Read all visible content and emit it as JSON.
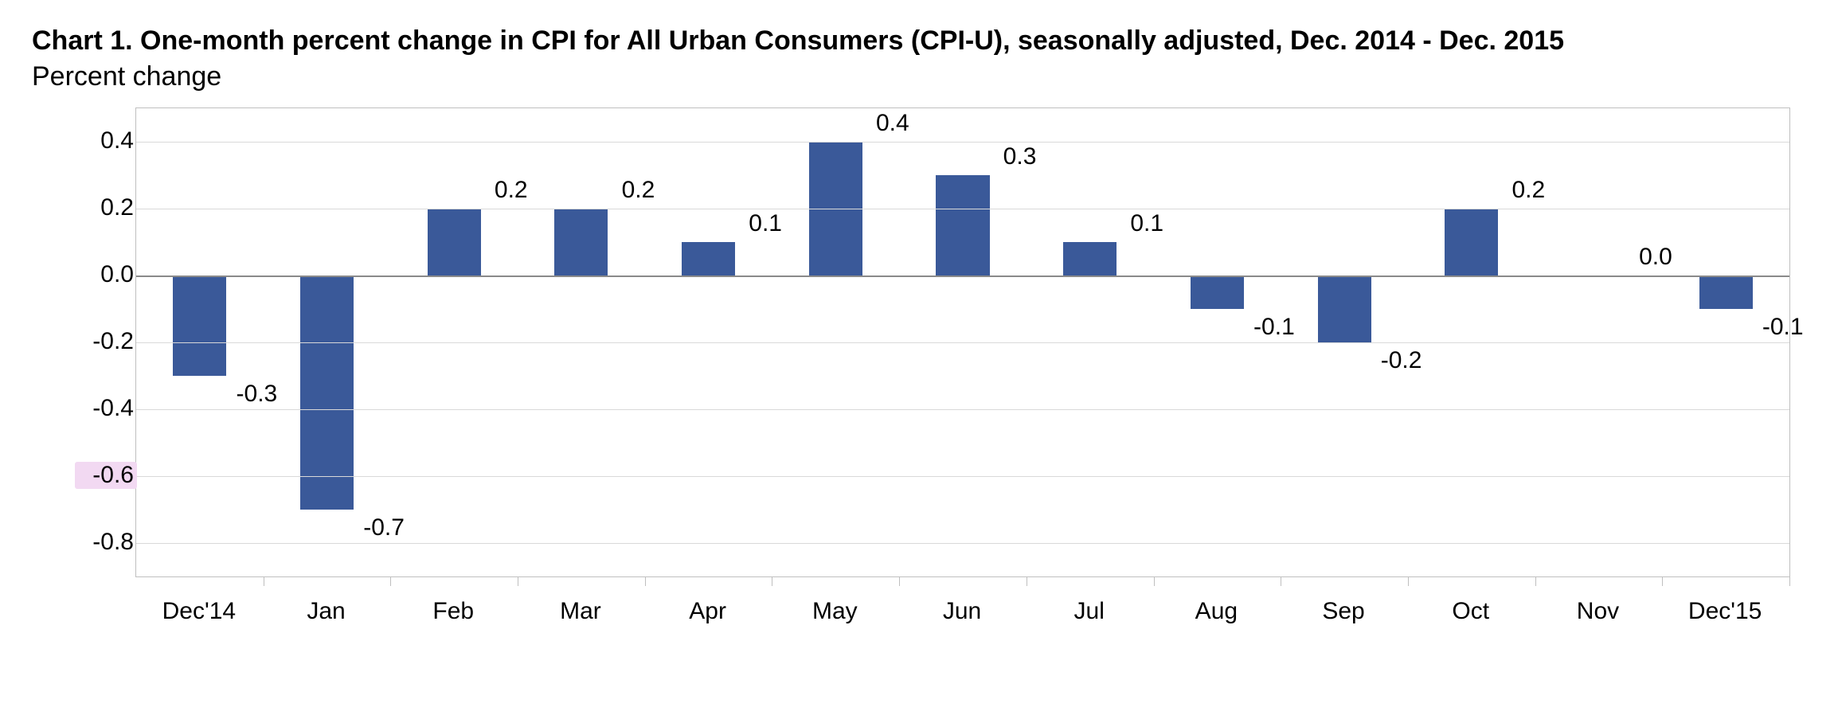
{
  "title": "Chart 1. One-month percent change in CPI for All Urban Consumers (CPI-U), seasonally adjusted, Dec. 2014 - Dec. 2015",
  "subtitle": "Percent change",
  "chart": {
    "type": "bar",
    "ylim": [
      -0.9,
      0.5
    ],
    "yticks": [
      0.4,
      0.2,
      0.0,
      -0.2,
      -0.4,
      -0.6,
      -0.8
    ],
    "ytick_labels": [
      "0.4",
      "0.2",
      "0.0",
      "-0.2",
      "-0.4",
      "-0.6",
      "-0.8"
    ],
    "highlighted_ytick_label": "-0.6",
    "grid_color": "#d9d9d9",
    "border_color": "#bfbfbf",
    "zero_line_color": "#8a8a8a",
    "bar_color": "#3a5999",
    "background_color": "#ffffff",
    "label_fontsize": 30,
    "title_fontsize": 34,
    "bar_width_ratio": 0.42,
    "categories": [
      "Dec'14",
      "Jan",
      "Feb",
      "Mar",
      "Apr",
      "May",
      "Jun",
      "Jul",
      "Aug",
      "Sep",
      "Oct",
      "Nov",
      "Dec'15"
    ],
    "values": [
      -0.3,
      -0.7,
      0.2,
      0.2,
      0.1,
      0.4,
      0.3,
      0.1,
      -0.1,
      -0.2,
      0.2,
      0.0,
      -0.1
    ],
    "value_labels": [
      "-0.3",
      "-0.7",
      "0.2",
      "0.2",
      "0.1",
      "0.4",
      "0.3",
      "0.1",
      "-0.1",
      "-0.2",
      "0.2",
      "0.0",
      "-0.1"
    ]
  }
}
